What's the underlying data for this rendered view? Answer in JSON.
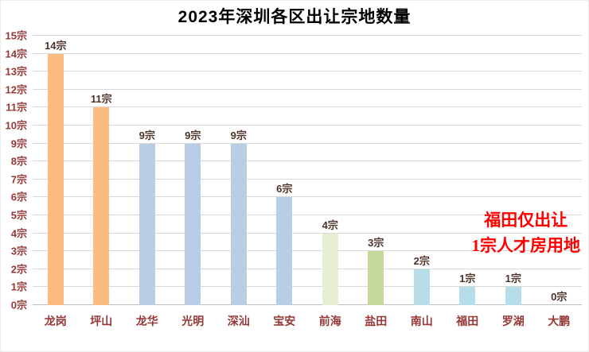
{
  "chart_data": {
    "type": "bar",
    "title": "2023年深圳各区出让宗地数量",
    "categories": [
      "龙岗",
      "坪山",
      "龙华",
      "光明",
      "深汕",
      "宝安",
      "前海",
      "盐田",
      "南山",
      "福田",
      "罗湖",
      "大鹏"
    ],
    "values": [
      14,
      11,
      9,
      9,
      9,
      6,
      4,
      3,
      2,
      1,
      1,
      0
    ],
    "bar_labels": [
      "14宗",
      "11宗",
      "9宗",
      "9宗",
      "9宗",
      "6宗",
      "4宗",
      "3宗",
      "2宗",
      "1宗",
      "1宗",
      "0宗"
    ],
    "bar_colors": [
      "#fbbb81",
      "#fbbb81",
      "#b9cde5",
      "#b9cde5",
      "#b9cde5",
      "#b9cde5",
      "#e6eed6",
      "#c5d79b",
      "#b7dee8",
      "#b7dee8",
      "#b7dee8",
      "#b7dee8"
    ],
    "unit_suffix": "宗",
    "xlabel": "",
    "ylabel": "",
    "ylim": [
      0,
      15
    ],
    "y_tick_step": 1,
    "y_tick_labels": [
      "0宗",
      "1宗",
      "2宗",
      "3宗",
      "4宗",
      "5宗",
      "6宗",
      "7宗",
      "8宗",
      "9宗",
      "10宗",
      "11宗",
      "12宗",
      "13宗",
      "14宗",
      "15宗"
    ],
    "grid": "horizontal",
    "legend": "none",
    "annotation": {
      "lines": [
        "福田仅出让",
        "1宗人才房用地"
      ],
      "color": "#ff0000"
    },
    "colors": {
      "axis_label": "#953735",
      "data_label": "#4d3229",
      "gridline": "#d9d9d9",
      "title": "#000000",
      "background": "#ffffff"
    }
  }
}
